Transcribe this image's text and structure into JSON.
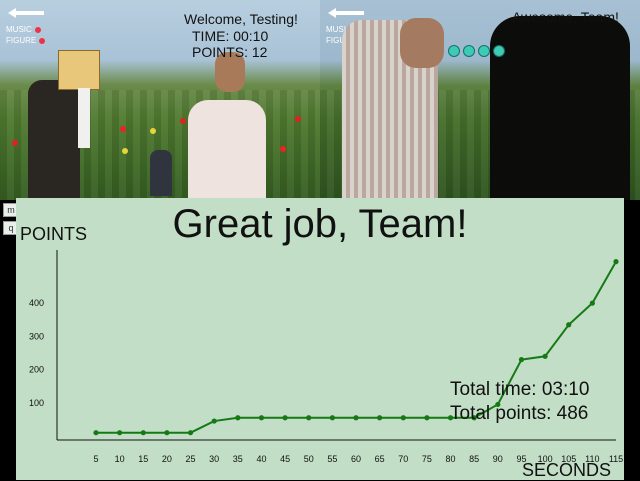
{
  "scene": {
    "left_pane": {
      "hud": {
        "music_label": "MUSIC",
        "figure_label": "FIGURE",
        "welcome": "Welcome, Testing!",
        "time": "TIME: 00:10",
        "points": "POINTS: 12"
      }
    },
    "right_pane": {
      "hud": {
        "music_label": "MUSIC",
        "figure_label": "FIGURE",
        "message": "Awesome, Team!"
      }
    },
    "side_tabs": [
      "m",
      "q"
    ]
  },
  "results": {
    "heading": "Great job, Team!",
    "total_time": "Total time: 03:10",
    "total_points": "Total points: 486"
  },
  "chart_data": {
    "type": "line",
    "xlabel": "SECONDS",
    "ylabel": "POINTS",
    "x": [
      5,
      10,
      15,
      20,
      25,
      30,
      35,
      40,
      45,
      50,
      55,
      60,
      65,
      70,
      75,
      80,
      85,
      90,
      95,
      100,
      105,
      110,
      115
    ],
    "y": [
      10,
      10,
      10,
      10,
      10,
      45,
      55,
      55,
      55,
      55,
      55,
      55,
      55,
      55,
      55,
      55,
      55,
      95,
      230,
      240,
      335,
      400,
      525
    ],
    "ytick_labels": [
      "100",
      "200",
      "300",
      "400"
    ],
    "ytick_values": [
      100,
      200,
      300,
      400
    ],
    "ylim": [
      -12,
      560
    ],
    "xlim": [
      5,
      115
    ],
    "grid": false,
    "line_color": "#157a15",
    "marker": "dot"
  },
  "colors": {
    "panel_bg": "#c3dec6",
    "line": "#157a15",
    "music_dot": "#e34"
  }
}
